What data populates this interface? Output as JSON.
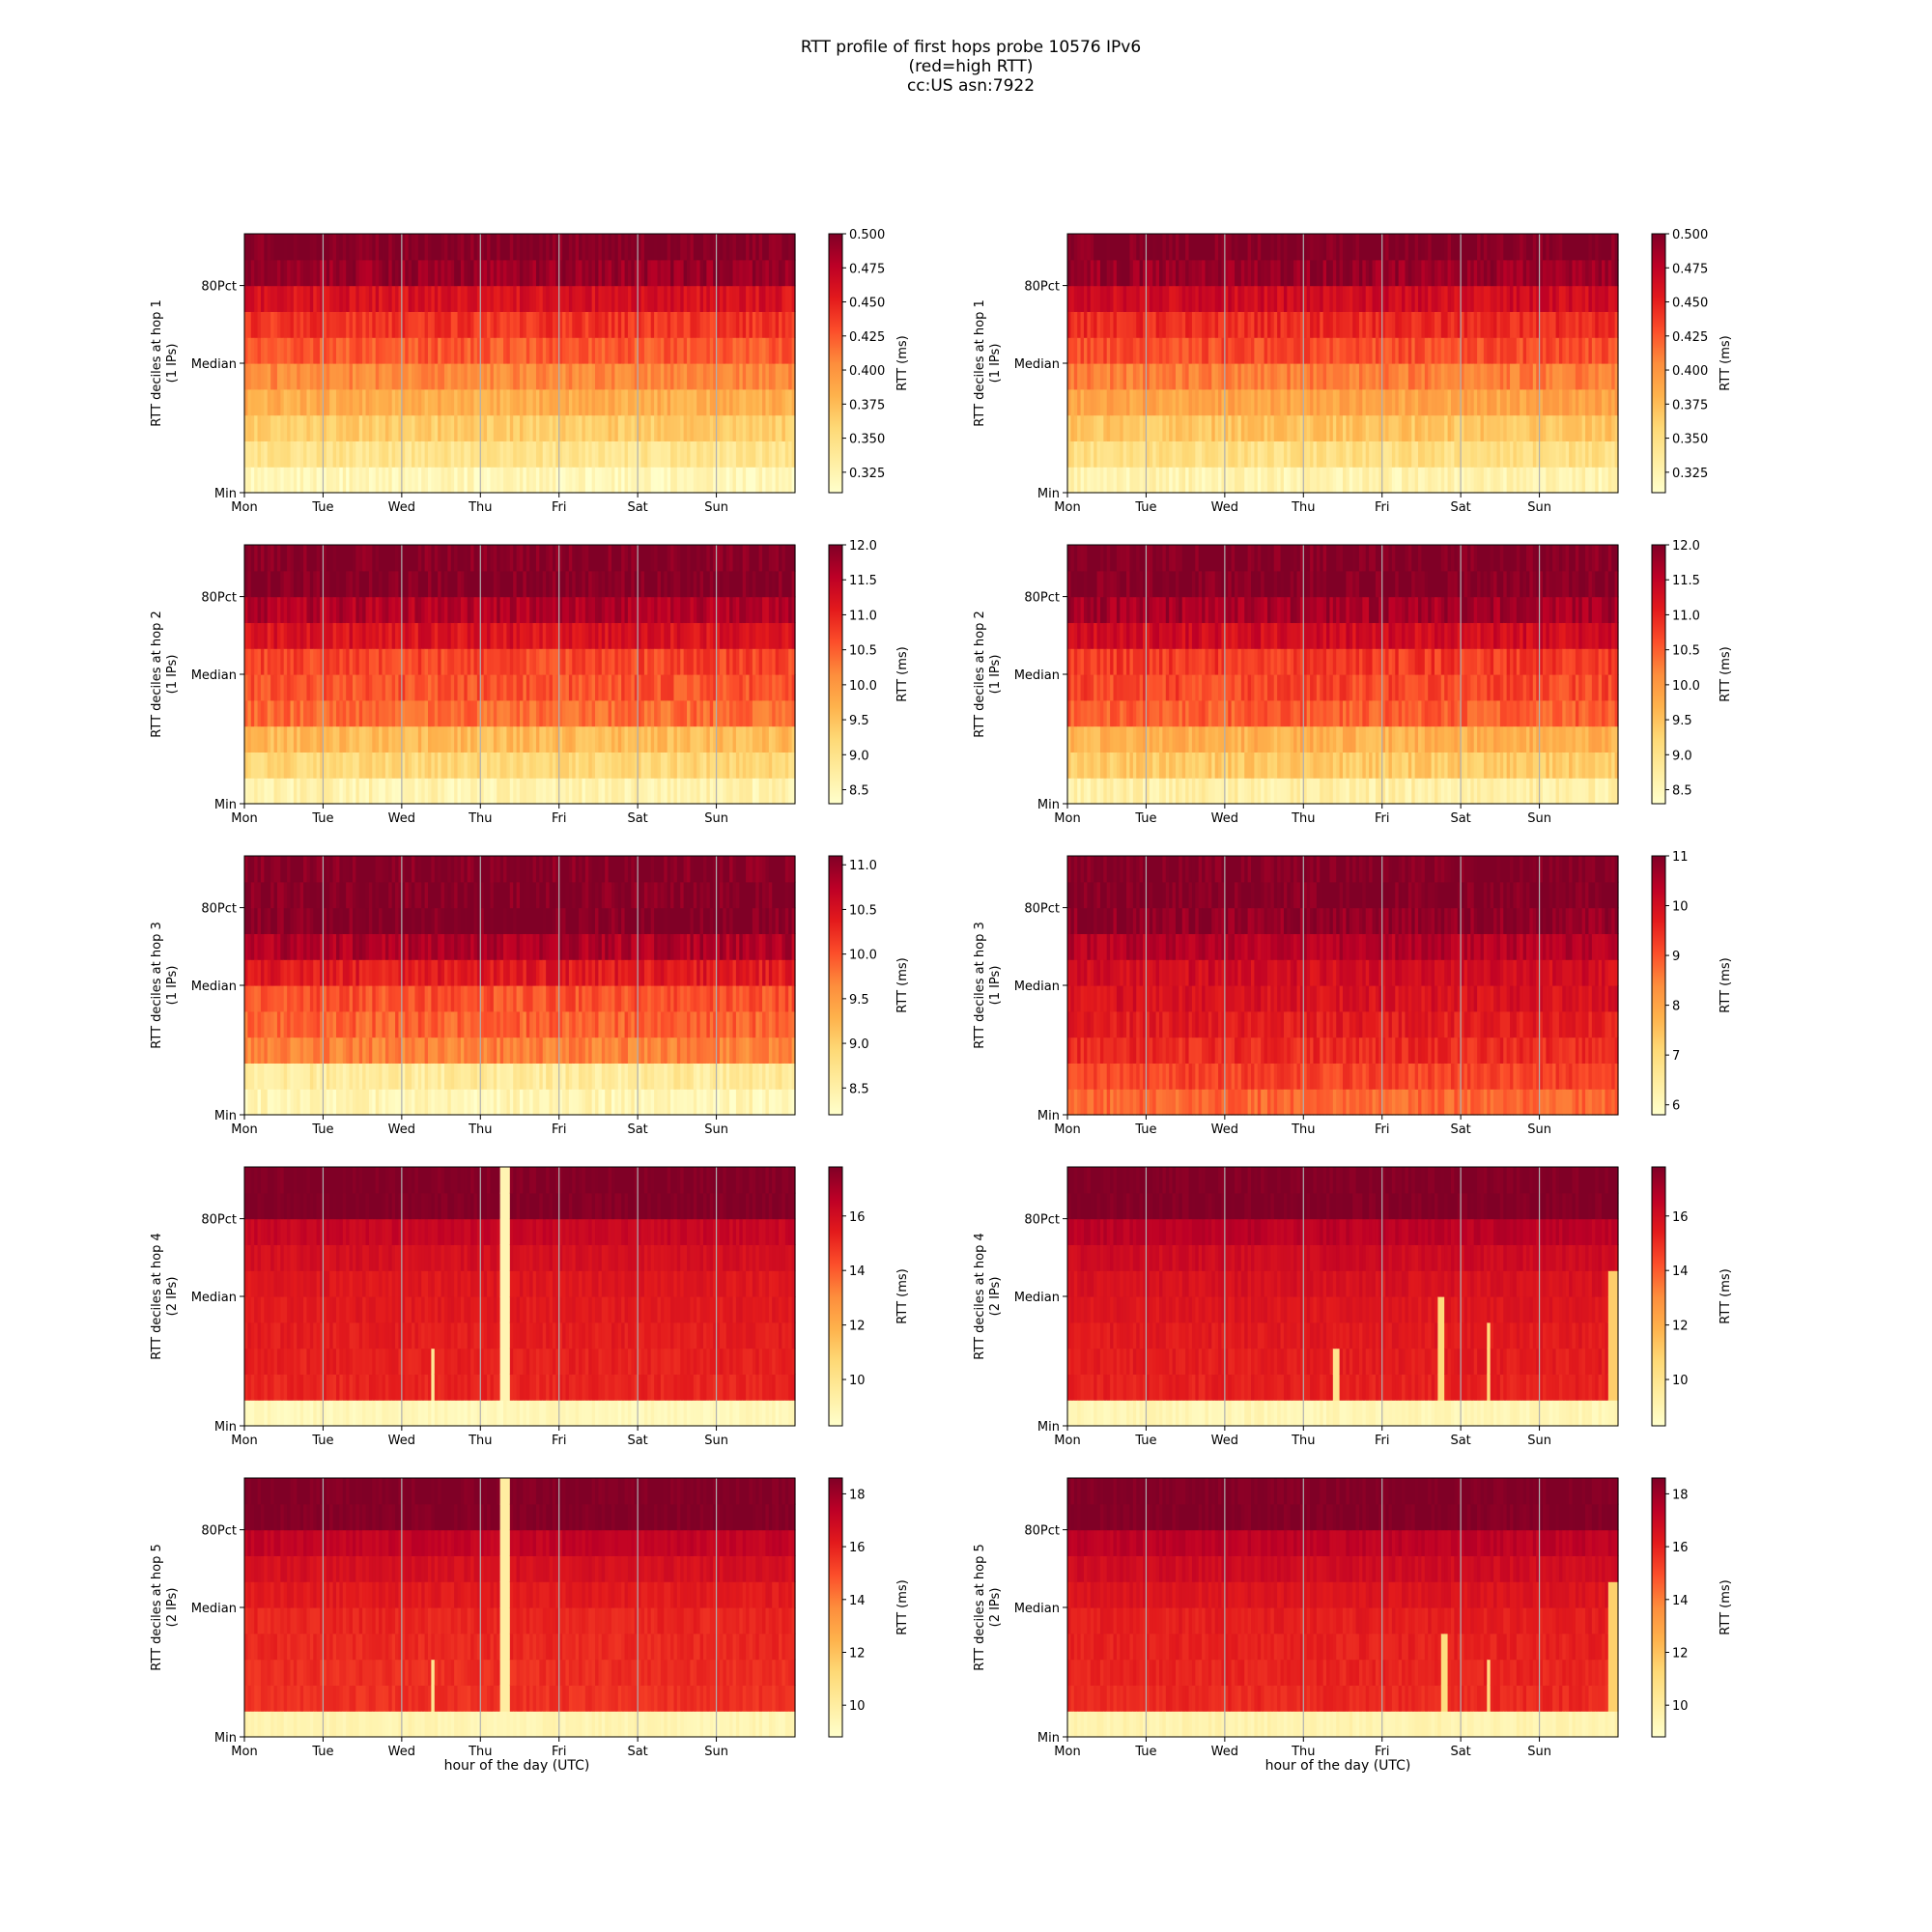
{
  "figure": {
    "title_lines": [
      "RTT profile of first hops probe 10576 IPv6",
      "(red=high RTT)",
      "cc:US asn:7922"
    ],
    "xlabel": "hour of the day (UTC)",
    "colorbar_label": "RTT (ms)",
    "colormap": [
      "#ffffcc",
      "#ffeda0",
      "#fed976",
      "#feb24c",
      "#fd8d3c",
      "#fc4e2a",
      "#e31a1c",
      "#bd0026",
      "#800026"
    ],
    "gridline_color": "#b0b0b0"
  },
  "chart_data": [
    {
      "type": "heatmap",
      "ylabel": "RTT deciles at hop 1",
      "ylabel2": "(1 IPs)",
      "xticks": [
        "Mon",
        "Tue",
        "Wed",
        "Thu",
        "Fri",
        "Sat",
        "Sun"
      ],
      "yticks": [
        "Min",
        "Median",
        "80Pct"
      ],
      "clim": [
        0.31,
        0.5
      ],
      "cbar_ticks": [
        "0.325",
        "0.350",
        "0.375",
        "0.400",
        "0.425",
        "0.450",
        "0.475",
        "0.500"
      ],
      "decile_levels": [
        0.32,
        0.345,
        0.365,
        0.385,
        0.405,
        0.425,
        0.44,
        0.46,
        0.49,
        0.5
      ],
      "jitter": 0.012,
      "spikes": []
    },
    {
      "type": "heatmap",
      "ylabel": "RTT deciles at hop 1",
      "ylabel2": "(1 IPs)",
      "xticks": [
        "Mon",
        "Tue",
        "Wed",
        "Thu",
        "Fri",
        "Sat",
        "Sun"
      ],
      "yticks": [
        "Min",
        "Median",
        "80Pct"
      ],
      "clim": [
        0.31,
        0.5
      ],
      "cbar_ticks": [
        "0.325",
        "0.350",
        "0.375",
        "0.400",
        "0.425",
        "0.450",
        "0.475",
        "0.500"
      ],
      "decile_levels": [
        0.325,
        0.35,
        0.37,
        0.39,
        0.41,
        0.43,
        0.445,
        0.465,
        0.49,
        0.5
      ],
      "jitter": 0.012,
      "spikes": []
    },
    {
      "type": "heatmap",
      "ylabel": "RTT deciles at hop 2",
      "ylabel2": "(1 IPs)",
      "xticks": [
        "Mon",
        "Tue",
        "Wed",
        "Thu",
        "Fri",
        "Sat",
        "Sun"
      ],
      "yticks": [
        "Min",
        "Median",
        "80Pct"
      ],
      "clim": [
        8.3,
        12.0
      ],
      "cbar_ticks": [
        "8.5",
        "9.0",
        "9.5",
        "10.0",
        "10.5",
        "11.0",
        "11.5",
        "12.0"
      ],
      "decile_levels": [
        8.6,
        9.2,
        9.6,
        10.4,
        10.6,
        10.7,
        11.2,
        11.6,
        12.0,
        12.0
      ],
      "jitter": 0.25,
      "spikes": []
    },
    {
      "type": "heatmap",
      "ylabel": "RTT deciles at hop 2",
      "ylabel2": "(1 IPs)",
      "xticks": [
        "Mon",
        "Tue",
        "Wed",
        "Thu",
        "Fri",
        "Sat",
        "Sun"
      ],
      "yticks": [
        "Min",
        "Median",
        "80Pct"
      ],
      "clim": [
        8.3,
        12.0
      ],
      "cbar_ticks": [
        "8.5",
        "9.0",
        "9.5",
        "10.0",
        "10.5",
        "11.0",
        "11.5",
        "12.0"
      ],
      "decile_levels": [
        8.7,
        9.4,
        9.7,
        10.5,
        10.7,
        10.8,
        11.3,
        11.7,
        12.0,
        12.0
      ],
      "jitter": 0.25,
      "spikes": []
    },
    {
      "type": "heatmap",
      "ylabel": "RTT deciles at hop 3",
      "ylabel2": "(1 IPs)",
      "xticks": [
        "Mon",
        "Tue",
        "Wed",
        "Thu",
        "Fri",
        "Sat",
        "Sun"
      ],
      "yticks": [
        "Min",
        "Median",
        "80Pct"
      ],
      "clim": [
        8.2,
        11.1
      ],
      "cbar_ticks": [
        "8.5",
        "9.0",
        "9.5",
        "10.0",
        "10.5",
        "11.0"
      ],
      "decile_levels": [
        8.4,
        8.6,
        9.7,
        9.9,
        10.0,
        10.4,
        10.8,
        11.1,
        11.1,
        11.1
      ],
      "jitter": 0.2,
      "spikes": []
    },
    {
      "type": "heatmap",
      "ylabel": "RTT deciles at hop 3",
      "ylabel2": "(1 IPs)",
      "xticks": [
        "Mon",
        "Tue",
        "Wed",
        "Thu",
        "Fri",
        "Sat",
        "Sun"
      ],
      "yticks": [
        "Min",
        "Median",
        "80Pct"
      ],
      "clim": [
        5.8,
        11.0
      ],
      "cbar_ticks": [
        "6",
        "7",
        "8",
        "9",
        "10",
        "11"
      ],
      "decile_levels": [
        8.8,
        9.2,
        9.5,
        9.7,
        9.9,
        10.0,
        10.4,
        10.8,
        11.0,
        11.0
      ],
      "jitter": 0.3,
      "spikes": []
    },
    {
      "type": "heatmap",
      "ylabel": "RTT deciles at hop 4",
      "ylabel2": "(2 IPs)",
      "xticks": [
        "Mon",
        "Tue",
        "Wed",
        "Thu",
        "Fri",
        "Sat",
        "Sun"
      ],
      "yticks": [
        "Min",
        "Median",
        "80Pct"
      ],
      "clim": [
        8.3,
        17.8
      ],
      "cbar_ticks": [
        "10",
        "12",
        "14",
        "16"
      ],
      "decile_levels": [
        8.8,
        15.2,
        15.3,
        15.4,
        15.5,
        15.6,
        15.9,
        16.3,
        17.8,
        17.8
      ],
      "jitter": 0.3,
      "spikes": [
        {
          "day": 3.25,
          "width": 0.12,
          "value": 9.0,
          "from": 1,
          "to": 9
        },
        {
          "day": 2.35,
          "width": 0.05,
          "value": 9.8,
          "from": 1,
          "to": 2
        }
      ]
    },
    {
      "type": "heatmap",
      "ylabel": "RTT deciles at hop 4",
      "ylabel2": "(2 IPs)",
      "xticks": [
        "Mon",
        "Tue",
        "Wed",
        "Thu",
        "Fri",
        "Sat",
        "Sun"
      ],
      "yticks": [
        "Min",
        "Median",
        "80Pct"
      ],
      "clim": [
        8.3,
        17.8
      ],
      "cbar_ticks": [
        "10",
        "12",
        "14",
        "16"
      ],
      "decile_levels": [
        8.9,
        15.3,
        15.4,
        15.5,
        15.6,
        15.8,
        16.1,
        16.6,
        17.8,
        17.8
      ],
      "jitter": 0.3,
      "spikes": [
        {
          "day": 3.35,
          "width": 0.08,
          "value": 10.0,
          "from": 1,
          "to": 2
        },
        {
          "day": 4.7,
          "width": 0.08,
          "value": 10.5,
          "from": 1,
          "to": 4
        },
        {
          "day": 5.3,
          "width": 0.05,
          "value": 10.5,
          "from": 1,
          "to": 3
        },
        {
          "day": 6.85,
          "width": 0.14,
          "value": 11.0,
          "from": 1,
          "to": 5
        }
      ]
    },
    {
      "type": "heatmap",
      "ylabel": "RTT deciles at hop 5",
      "ylabel2": "(2 IPs)",
      "xticks": [
        "Mon",
        "Tue",
        "Wed",
        "Thu",
        "Fri",
        "Sat",
        "Sun"
      ],
      "yticks": [
        "Min",
        "Median",
        "80Pct"
      ],
      "clim": [
        8.8,
        18.6
      ],
      "cbar_ticks": [
        "10",
        "12",
        "14",
        "16",
        "18"
      ],
      "decile_levels": [
        9.5,
        15.6,
        15.7,
        15.8,
        15.9,
        16.2,
        16.6,
        17.2,
        18.6,
        18.6
      ],
      "jitter": 0.3,
      "spikes": [
        {
          "day": 3.25,
          "width": 0.12,
          "value": 10.0,
          "from": 1,
          "to": 9
        },
        {
          "day": 2.35,
          "width": 0.05,
          "value": 10.5,
          "from": 1,
          "to": 2
        }
      ]
    },
    {
      "type": "heatmap",
      "ylabel": "RTT deciles at hop 5",
      "ylabel2": "(2 IPs)",
      "xticks": [
        "Mon",
        "Tue",
        "Wed",
        "Thu",
        "Fri",
        "Sat",
        "Sun"
      ],
      "yticks": [
        "Min",
        "Median",
        "80Pct"
      ],
      "clim": [
        8.8,
        18.6
      ],
      "cbar_ticks": [
        "10",
        "12",
        "14",
        "16",
        "18"
      ],
      "decile_levels": [
        9.6,
        15.8,
        15.9,
        16.0,
        16.1,
        16.4,
        16.8,
        17.3,
        18.6,
        18.6
      ],
      "jitter": 0.3,
      "spikes": [
        {
          "day": 4.75,
          "width": 0.08,
          "value": 11.0,
          "from": 1,
          "to": 3
        },
        {
          "day": 5.3,
          "width": 0.05,
          "value": 11.0,
          "from": 1,
          "to": 2
        },
        {
          "day": 6.85,
          "width": 0.14,
          "value": 11.5,
          "from": 1,
          "to": 5
        }
      ]
    }
  ]
}
